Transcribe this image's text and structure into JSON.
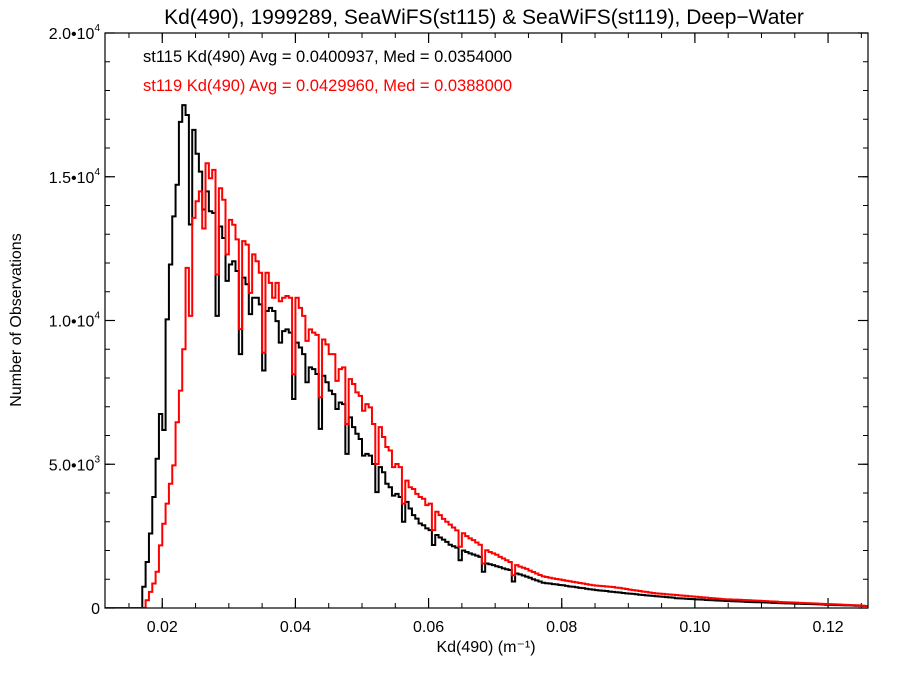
{
  "chart_data": {
    "type": "line",
    "style": "histogram-steps",
    "title": "Kd(490), 1999289, SeaWiFS(st115) & SeaWiFS(st119), Deep−Water",
    "xlabel": "Kd(490) (m⁻¹)",
    "ylabel": "Number of Observations",
    "xlim": [
      0.0114,
      0.126
    ],
    "ylim": [
      0,
      20000
    ],
    "grid": false,
    "legend_placement": "top-left",
    "x_ticks": [
      {
        "value": 0.02,
        "label": "0.02"
      },
      {
        "value": 0.04,
        "label": "0.04"
      },
      {
        "value": 0.06,
        "label": "0.06"
      },
      {
        "value": 0.08,
        "label": "0.08"
      },
      {
        "value": 0.1,
        "label": "0.10"
      },
      {
        "value": 0.12,
        "label": "0.12"
      }
    ],
    "x_minor_step": 0.005,
    "y_ticks": [
      {
        "value": 0,
        "mantissa": "0",
        "exponent": ""
      },
      {
        "value": 5000,
        "mantissa": "5.0•10",
        "exponent": "3"
      },
      {
        "value": 10000,
        "mantissa": "1.0•10",
        "exponent": "4"
      },
      {
        "value": 15000,
        "mantissa": "1.5•10",
        "exponent": "4"
      },
      {
        "value": 20000,
        "mantissa": "2.0•10",
        "exponent": "4"
      }
    ],
    "y_minor_step": 1000,
    "bin_start": 0.0165,
    "bin_width": 0.0005,
    "series": [
      {
        "name": "st115",
        "color": "#000000",
        "legend": "st115 Kd(490) Avg = 0.0400937, Med = 0.0354000",
        "values": [
          0,
          740,
          1600,
          2590,
          3860,
          5190,
          6750,
          6190,
          10040,
          11950,
          13620,
          14720,
          16910,
          17490,
          17150,
          13340,
          16630,
          15800,
          15180,
          13860,
          14490,
          13800,
          13740,
          10160,
          13270,
          12870,
          11380,
          11950,
          12060,
          11720,
          8830,
          11490,
          11260,
          10220,
          10790,
          10790,
          10560,
          8260,
          10330,
          10440,
          10330,
          9980,
          9230,
          9630,
          9690,
          9580,
          7270,
          9230,
          9060,
          8830,
          7850,
          8370,
          8310,
          8140,
          6230,
          8080,
          7850,
          7560,
          7440,
          6920,
          7150,
          7090,
          5360,
          6630,
          6290,
          6060,
          5880,
          5300,
          5360,
          5300,
          5010,
          4030,
          4900,
          4720,
          4320,
          4200,
          3910,
          3970,
          3860,
          3000,
          3690,
          3460,
          3230,
          3110,
          2940,
          2880,
          2770,
          2710,
          2190,
          2540,
          2450,
          2380,
          2300,
          2200,
          2150,
          2100,
          1660,
          2000,
          1950,
          1900,
          1860,
          1820,
          1780,
          1260,
          1550,
          1520,
          1490,
          1450,
          1420,
          1380,
          1350,
          1320,
          920,
          1200,
          1170,
          1130,
          1090,
          1050,
          1000,
          960,
          920,
          880,
          860,
          850,
          830,
          820,
          800,
          790,
          770,
          750,
          740,
          720,
          700,
          690,
          670,
          650,
          640,
          620,
          610,
          600,
          590,
          570,
          560,
          550,
          540,
          520,
          510,
          500,
          490,
          480,
          460,
          450,
          440,
          430,
          420,
          410,
          400,
          390,
          380,
          370,
          360,
          340,
          335,
          330,
          320,
          315,
          310,
          300,
          295,
          290,
          280,
          275,
          270,
          260,
          255,
          250,
          245,
          240,
          235,
          230,
          225,
          220,
          215,
          210,
          205,
          200,
          200,
          195,
          190,
          185,
          180,
          175,
          170,
          165,
          160,
          160,
          155,
          150,
          150,
          145,
          140,
          140,
          135,
          130,
          125,
          120,
          115,
          110,
          105,
          100,
          100,
          95,
          90,
          90,
          85,
          80,
          80,
          75,
          70
        ]
      },
      {
        "name": "st119",
        "color": "#ff0000",
        "legend": "st119 Kd(490) Avg = 0.0429960, Med = 0.0388000",
        "values": [
          0,
          0,
          270,
          560,
          850,
          1260,
          2180,
          2930,
          3630,
          4320,
          4960,
          6460,
          7560,
          9000,
          11830,
          10160,
          13570,
          14150,
          14490,
          13200,
          15470,
          14950,
          15240,
          11600,
          14600,
          14200,
          12300,
          13500,
          13330,
          12820,
          9700,
          12760,
          12640,
          10960,
          12300,
          12060,
          11660,
          8880,
          11660,
          11310,
          10790,
          11310,
          10670,
          10790,
          10850,
          10790,
          8130,
          10790,
          10440,
          10160,
          9290,
          9690,
          9580,
          9500,
          7330,
          9340,
          9170,
          8830,
          8830,
          7900,
          8310,
          8370,
          6400,
          7960,
          7790,
          7500,
          7380,
          6860,
          7090,
          6980,
          6400,
          5010,
          6290,
          5950,
          5600,
          5480,
          4900,
          5010,
          4900,
          3630,
          4430,
          4200,
          4140,
          3970,
          3860,
          3800,
          3580,
          3630,
          2710,
          3350,
          3230,
          3100,
          3000,
          2900,
          2800,
          2700,
          2130,
          2600,
          2500,
          2420,
          2360,
          2280,
          2200,
          1550,
          2010,
          1950,
          1900,
          1850,
          1780,
          1720,
          1660,
          1600,
          1140,
          1490,
          1440,
          1400,
          1360,
          1300,
          1250,
          1200,
          1150,
          1100,
          1080,
          1050,
          1030,
          1010,
          990,
          970,
          950,
          930,
          910,
          890,
          870,
          850,
          830,
          810,
          790,
          780,
          770,
          760,
          750,
          740,
          730,
          710,
          700,
          680,
          660,
          640,
          620,
          610,
          590,
          570,
          560,
          540,
          520,
          510,
          500,
          490,
          480,
          470,
          460,
          450,
          440,
          430,
          420,
          410,
          400,
          390,
          380,
          370,
          360,
          350,
          340,
          330,
          320,
          310,
          300,
          300,
          290,
          290,
          285,
          280,
          275,
          270,
          260,
          255,
          250,
          245,
          240,
          230,
          225,
          220,
          210,
          205,
          200,
          195,
          190,
          185,
          180,
          175,
          170,
          165,
          160,
          155,
          150,
          145,
          140,
          135,
          130,
          125,
          120,
          115,
          110,
          105,
          100,
          95,
          90,
          80,
          70
        ]
      }
    ]
  }
}
